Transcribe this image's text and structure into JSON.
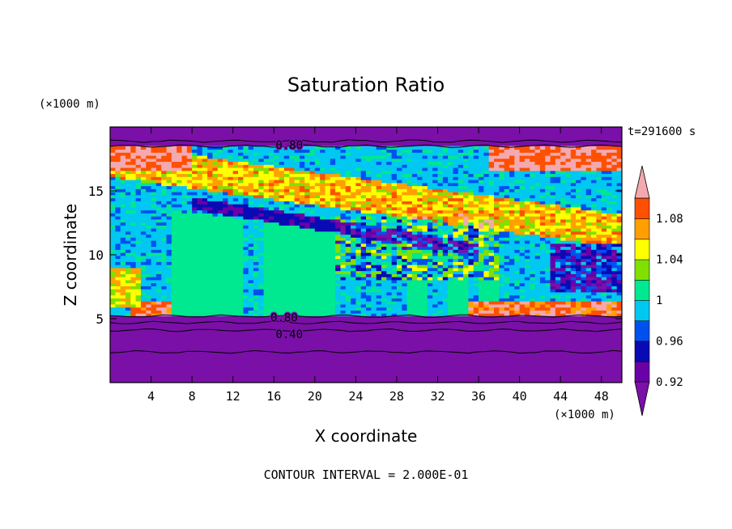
{
  "chart_data": {
    "type": "heatmap",
    "title": "Saturation Ratio",
    "xlabel": "X coordinate",
    "ylabel": "Z coordinate",
    "x_unit": "(×1000 m)",
    "y_unit": "(×1000 m)",
    "time_label": "t=291600 s",
    "footer": "CONTOUR INTERVAL = 2.000E-01",
    "xlim": [
      0,
      50
    ],
    "ylim": [
      0,
      20
    ],
    "x_ticks": [
      4,
      8,
      12,
      16,
      20,
      24,
      28,
      32,
      36,
      40,
      44,
      48
    ],
    "y_ticks": [
      5,
      10,
      15
    ],
    "contour_labels": [
      {
        "text": "0.80",
        "x": 17.5,
        "z": 18.6
      },
      {
        "text": "0.80",
        "x": 17.0,
        "z": 5.1
      },
      {
        "text": "0.40",
        "x": 17.5,
        "z": 3.8
      }
    ],
    "colorbar": {
      "levels": [
        0.92,
        0.94,
        0.96,
        0.98,
        1.0,
        1.02,
        1.04,
        1.06,
        1.08,
        1.1
      ],
      "tick_labels": [
        "0.92",
        "0.96",
        "1",
        "1.04",
        "1.08"
      ],
      "tick_values": [
        0.92,
        0.96,
        1.0,
        1.04,
        1.08
      ],
      "colors": [
        "#7a10a8",
        "#6a00a8",
        "#0a0ab4",
        "#0050f0",
        "#00c8f0",
        "#00e890",
        "#80e000",
        "#ffff00",
        "#ffa000",
        "#ff5000",
        "#f00000",
        "#f4a8b0"
      ],
      "extend": "both"
    },
    "regions": {
      "upper_layer_z": [
        18.5,
        20
      ],
      "cloud_layer_z": [
        5.2,
        18.5
      ],
      "lower_layer_z": [
        0,
        5.2
      ],
      "upper_value": 0.8,
      "lower_value": 0.4
    }
  }
}
